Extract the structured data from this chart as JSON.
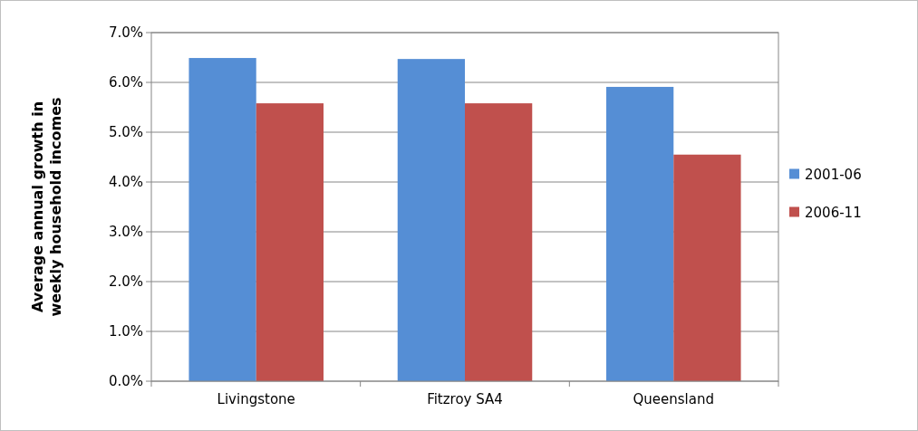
{
  "chart_data": {
    "type": "bar",
    "categories": [
      "Livingstone",
      "Fitzroy SA4",
      "Queensland"
    ],
    "series": [
      {
        "name": "2001-06",
        "color": "#558ed5",
        "values": [
          6.49,
          6.47,
          5.91
        ]
      },
      {
        "name": "2006-11",
        "color": "#c0504d",
        "values": [
          5.58,
          5.58,
          4.55
        ]
      }
    ],
    "ylabel": "Average annual growth in weekly household incomes",
    "ylim": [
      0,
      7
    ],
    "yticks": [
      {
        "value": 0,
        "label": "0.0%"
      },
      {
        "value": 1,
        "label": "1.0%"
      },
      {
        "value": 2,
        "label": "2.0%"
      },
      {
        "value": 3,
        "label": "3.0%"
      },
      {
        "value": 4,
        "label": "4.0%"
      },
      {
        "value": 5,
        "label": "5.0%"
      },
      {
        "value": 6,
        "label": "6.0%"
      },
      {
        "value": 7,
        "label": "7.0%"
      }
    ],
    "grid": "y",
    "legend": "right"
  }
}
